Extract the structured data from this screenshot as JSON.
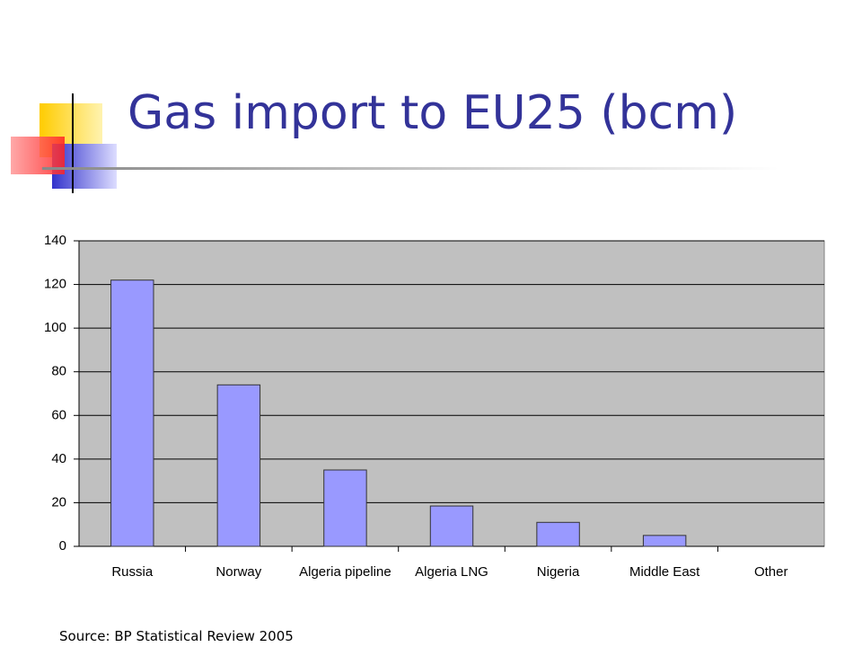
{
  "chart_data": {
    "type": "bar",
    "title": "Gas import to EU25 (bcm)",
    "categories": [
      "Russia",
      "Norway",
      "Algeria pipeline",
      "Algeria LNG",
      "Nigeria",
      "Middle East",
      "Other"
    ],
    "values": [
      122,
      74,
      35,
      18.5,
      11,
      5,
      0
    ],
    "color": "#9999ff",
    "ylim": [
      0,
      140
    ],
    "yticks": [
      0,
      20,
      40,
      60,
      80,
      100,
      120,
      140
    ],
    "grid": true,
    "source": "Source: BP Statistical Review 2005"
  }
}
